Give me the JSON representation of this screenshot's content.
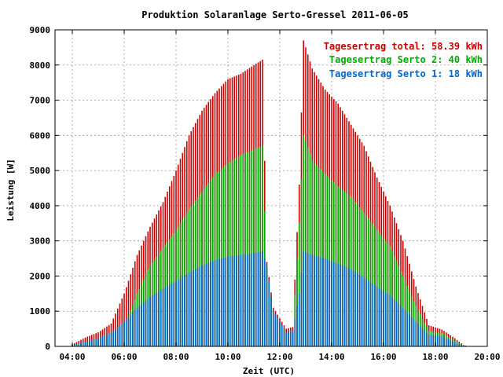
{
  "chart_data": {
    "type": "bar",
    "stacked": true,
    "title": "Produktion Solaranlage Serto-Gressel 2011-06-05",
    "xlabel": "Zeit (UTC)",
    "ylabel": "Leistung [W]",
    "x_ticks": [
      "04:00",
      "06:00",
      "08:00",
      "10:00",
      "12:00",
      "14:00",
      "16:00",
      "18:00",
      "20:00"
    ],
    "y_ticks": [
      "0",
      "1000",
      "2000",
      "3000",
      "4000",
      "5000",
      "6000",
      "7000",
      "8000",
      "9000"
    ],
    "ylim": [
      0,
      9000
    ],
    "xlim": [
      "03:20",
      "20:00"
    ],
    "grid": true,
    "legend_position": "top-right",
    "legend": [
      {
        "label": "Tagesertrag total: 58.39 kWh",
        "color": "#cc0000"
      },
      {
        "label": "Tagesertrag Serto 2: 40 kWh",
        "color": "#00aa00"
      },
      {
        "label": "Tagesertrag Serto 1: 18 kWh",
        "color": "#0066cc"
      }
    ],
    "colors": {
      "total": "#cc0000",
      "serto2": "#00aa00",
      "serto1": "#0066cc"
    },
    "interval_minutes": 5,
    "samples": [
      {
        "time": "04:00",
        "serto1": 40,
        "serto2": 20,
        "total": 60
      },
      {
        "time": "04:30",
        "serto1": 130,
        "serto2": 60,
        "total": 250
      },
      {
        "time": "05:00",
        "serto1": 230,
        "serto2": 110,
        "total": 400
      },
      {
        "time": "05:30",
        "serto1": 400,
        "serto2": 200,
        "total": 650
      },
      {
        "time": "06:00",
        "serto1": 700,
        "serto2": 550,
        "total": 1500
      },
      {
        "time": "06:30",
        "serto1": 1100,
        "serto2": 1500,
        "total": 2600
      },
      {
        "time": "07:00",
        "serto1": 1400,
        "serto2": 2300,
        "total": 3400
      },
      {
        "time": "07:30",
        "serto1": 1650,
        "serto2": 2800,
        "total": 4100
      },
      {
        "time": "08:00",
        "serto1": 1850,
        "serto2": 3300,
        "total": 5000
      },
      {
        "time": "08:30",
        "serto1": 2100,
        "serto2": 3900,
        "total": 6000
      },
      {
        "time": "09:00",
        "serto1": 2300,
        "serto2": 4400,
        "total": 6700
      },
      {
        "time": "09:30",
        "serto1": 2450,
        "serto2": 4900,
        "total": 7200
      },
      {
        "time": "10:00",
        "serto1": 2550,
        "serto2": 5200,
        "total": 7600
      },
      {
        "time": "10:30",
        "serto1": 2600,
        "serto2": 5450,
        "total": 7750
      },
      {
        "time": "11:00",
        "serto1": 2650,
        "serto2": 5600,
        "total": 8000
      },
      {
        "time": "11:20",
        "serto1": 2700,
        "serto2": 5700,
        "total": 8150
      },
      {
        "time": "11:30",
        "serto1": 2300,
        "serto2": 2000,
        "total": 2400
      },
      {
        "time": "11:45",
        "serto1": 1000,
        "serto2": 1000,
        "total": 1100
      },
      {
        "time": "12:15",
        "serto1": 400,
        "serto2": 400,
        "total": 500
      },
      {
        "time": "12:30",
        "serto1": 450,
        "serto2": 450,
        "total": 550
      },
      {
        "time": "12:45",
        "serto1": 1500,
        "serto2": 3500,
        "total": 4600
      },
      {
        "time": "12:55",
        "serto1": 2700,
        "serto2": 6000,
        "total": 8700
      },
      {
        "time": "13:15",
        "serto1": 2600,
        "serto2": 5300,
        "total": 7900
      },
      {
        "time": "13:45",
        "serto1": 2500,
        "serto2": 4900,
        "total": 7300
      },
      {
        "time": "14:15",
        "serto1": 2350,
        "serto2": 4550,
        "total": 6900
      },
      {
        "time": "14:45",
        "serto1": 2200,
        "serto2": 4250,
        "total": 6300
      },
      {
        "time": "15:15",
        "serto1": 1950,
        "serto2": 3800,
        "total": 5700
      },
      {
        "time": "15:45",
        "serto1": 1700,
        "serto2": 3300,
        "total": 4800
      },
      {
        "time": "16:15",
        "serto1": 1450,
        "serto2": 2850,
        "total": 4000
      },
      {
        "time": "16:45",
        "serto1": 1100,
        "serto2": 2000,
        "total": 3000
      },
      {
        "time": "17:15",
        "serto1": 700,
        "serto2": 1150,
        "total": 1700
      },
      {
        "time": "17:45",
        "serto1": 330,
        "serto2": 430,
        "total": 600
      },
      {
        "time": "18:15",
        "serto1": 280,
        "serto2": 370,
        "total": 480
      },
      {
        "time": "18:45",
        "serto1": 120,
        "serto2": 160,
        "total": 230
      },
      {
        "time": "19:05",
        "serto1": 20,
        "serto2": 30,
        "total": 40
      },
      {
        "time": "19:15",
        "serto1": 0,
        "serto2": 0,
        "total": 0
      }
    ]
  }
}
